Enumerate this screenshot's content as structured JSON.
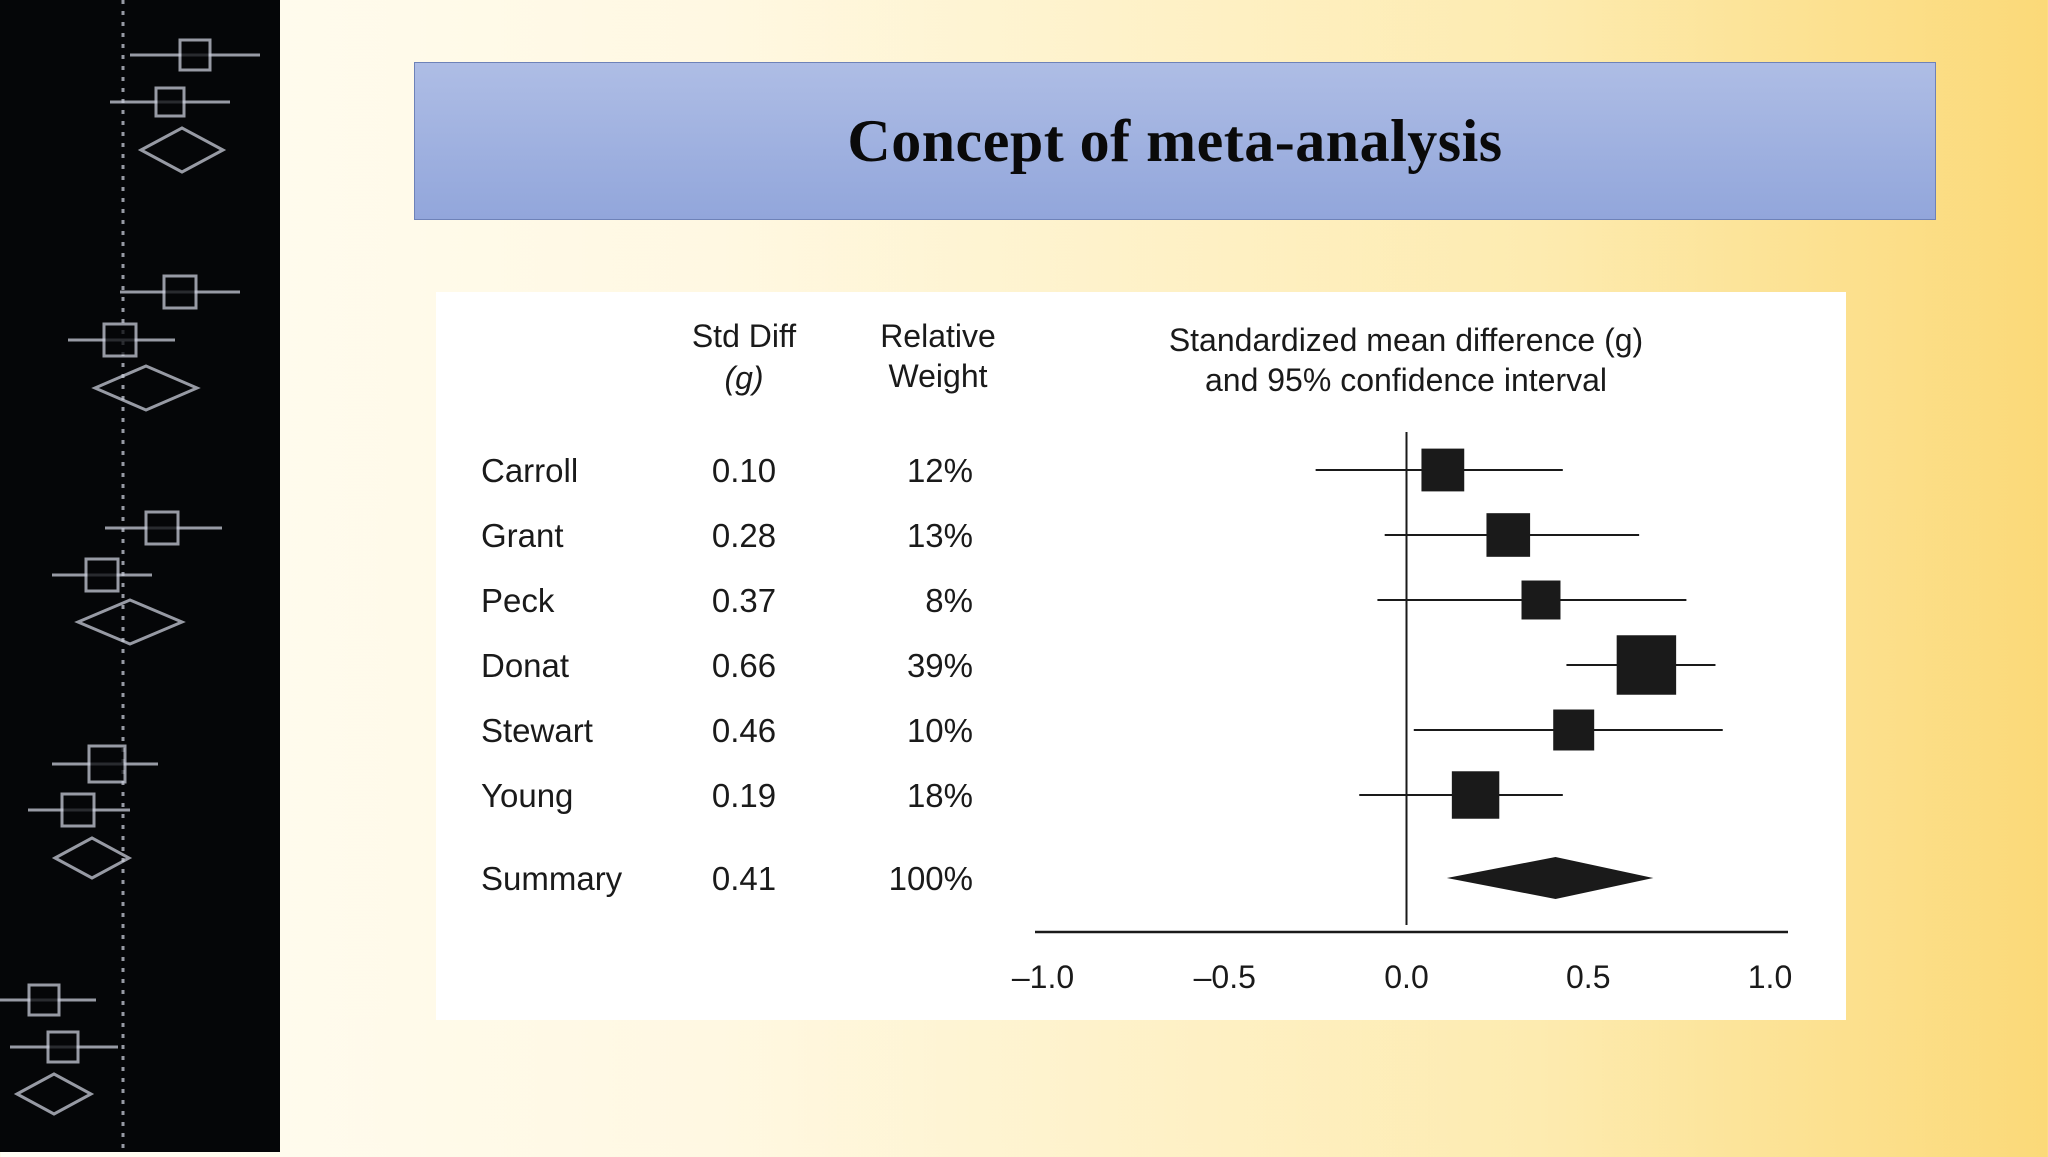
{
  "slide": {
    "title": "Concept of meta-analysis"
  },
  "colors": {
    "side_strip": "#050608",
    "side_strip_lines": "#c8ccd8",
    "banner": "#9fb1e0",
    "marks": "#1a1a1a"
  },
  "chart_data": {
    "type": "forest",
    "headers": {
      "study": "",
      "effect_line1": "Std Diff",
      "effect_line2": "(g)",
      "weight_line1": "Relative",
      "weight_line2": "Weight",
      "plot_line1": "Standardized mean difference (g)",
      "plot_line2": "and 95% confidence interval"
    },
    "studies": [
      {
        "name": "Carroll",
        "g": 0.1,
        "g_label": "0.10",
        "weight": 12,
        "weight_label": "12%",
        "ci_low": -0.25,
        "ci_high": 0.43
      },
      {
        "name": "Grant",
        "g": 0.28,
        "g_label": "0.28",
        "weight": 13,
        "weight_label": "13%",
        "ci_low": -0.06,
        "ci_high": 0.64
      },
      {
        "name": "Peck",
        "g": 0.37,
        "g_label": "0.37",
        "weight": 8,
        "weight_label": "8%",
        "ci_low": -0.08,
        "ci_high": 0.77
      },
      {
        "name": "Donat",
        "g": 0.66,
        "g_label": "0.66",
        "weight": 39,
        "weight_label": "39%",
        "ci_low": 0.44,
        "ci_high": 0.85
      },
      {
        "name": "Stewart",
        "g": 0.46,
        "g_label": "0.46",
        "weight": 10,
        "weight_label": "10%",
        "ci_low": 0.02,
        "ci_high": 0.87
      },
      {
        "name": "Young",
        "g": 0.19,
        "g_label": "0.19",
        "weight": 18,
        "weight_label": "18%",
        "ci_low": -0.13,
        "ci_high": 0.43
      }
    ],
    "summary": {
      "name": "Summary",
      "g": 0.41,
      "g_label": "0.41",
      "weight": 100,
      "weight_label": "100%",
      "ci_low": 0.21,
      "ci_high": 0.58
    },
    "xlim": [
      -1.0,
      1.0
    ],
    "x_ticks": [
      -1.0,
      -0.5,
      0.0,
      0.5,
      1.0
    ],
    "x_tick_labels": [
      "–1.0",
      "–0.5",
      "0.0",
      "0.5",
      "1.0"
    ],
    "reference_line": 0.0,
    "grid": false
  }
}
